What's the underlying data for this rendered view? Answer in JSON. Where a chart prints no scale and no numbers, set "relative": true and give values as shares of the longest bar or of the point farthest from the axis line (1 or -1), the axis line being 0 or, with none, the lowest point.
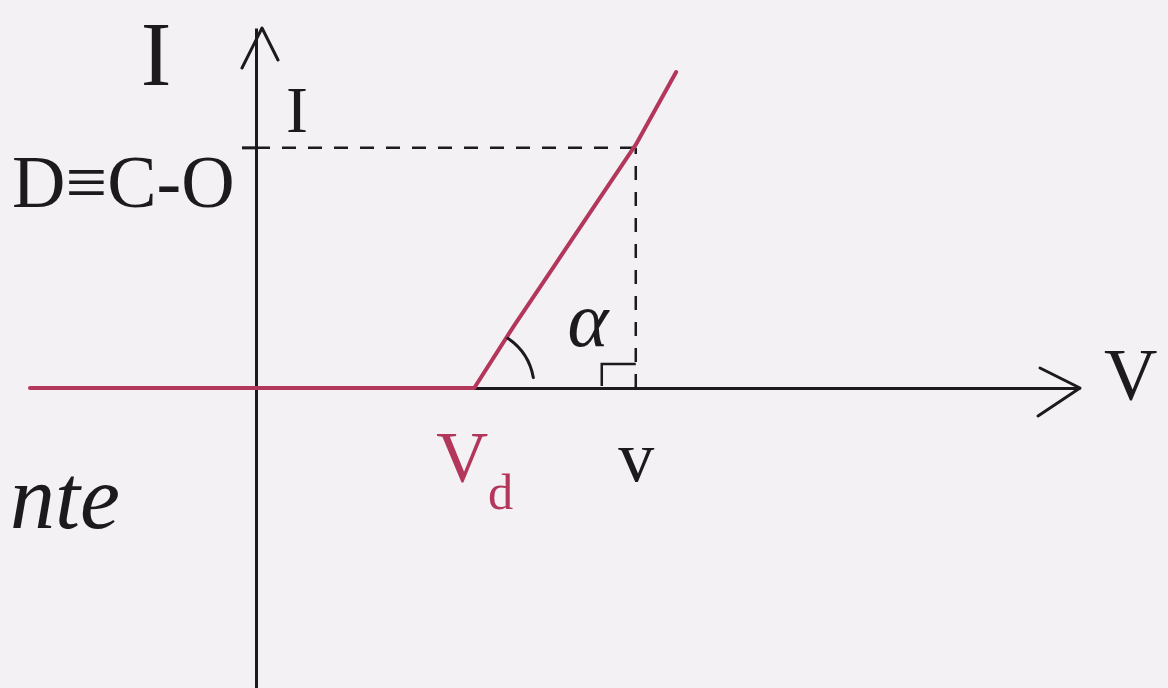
{
  "chart_data": {
    "type": "line",
    "relative": true,
    "xlabel": "V",
    "ylabel": "I",
    "categories": [
      null,
      null,
      null,
      null,
      null,
      null,
      null,
      null,
      null,
      null,
      null,
      "V$_{d}$",
      null,
      null,
      null,
      "v",
      null,
      null,
      null,
      null,
      null,
      null,
      null,
      null,
      null,
      null,
      null
    ],
    "series": [
      {
        "color": "#b3365b",
        "values": [
          0,
          0,
          0,
          0,
          0,
          0,
          0,
          0,
          0,
          0,
          0,
          0,
          0.2,
          0.39,
          0.58,
          0.77,
          1,
          null,
          null,
          null,
          null,
          null,
          null,
          null,
          null,
          null,
          null
        ]
      }
    ],
    "ref_lines": [
      {
        "axis": "x",
        "value": "v",
        "line_style": "dashed"
      },
      {
        "axis": "y",
        "value": 0.76,
        "label": "I",
        "line_style": "dashed"
      }
    ],
    "annotations": [
      "D≡C-O",
      "α",
      "nte"
    ]
  }
}
